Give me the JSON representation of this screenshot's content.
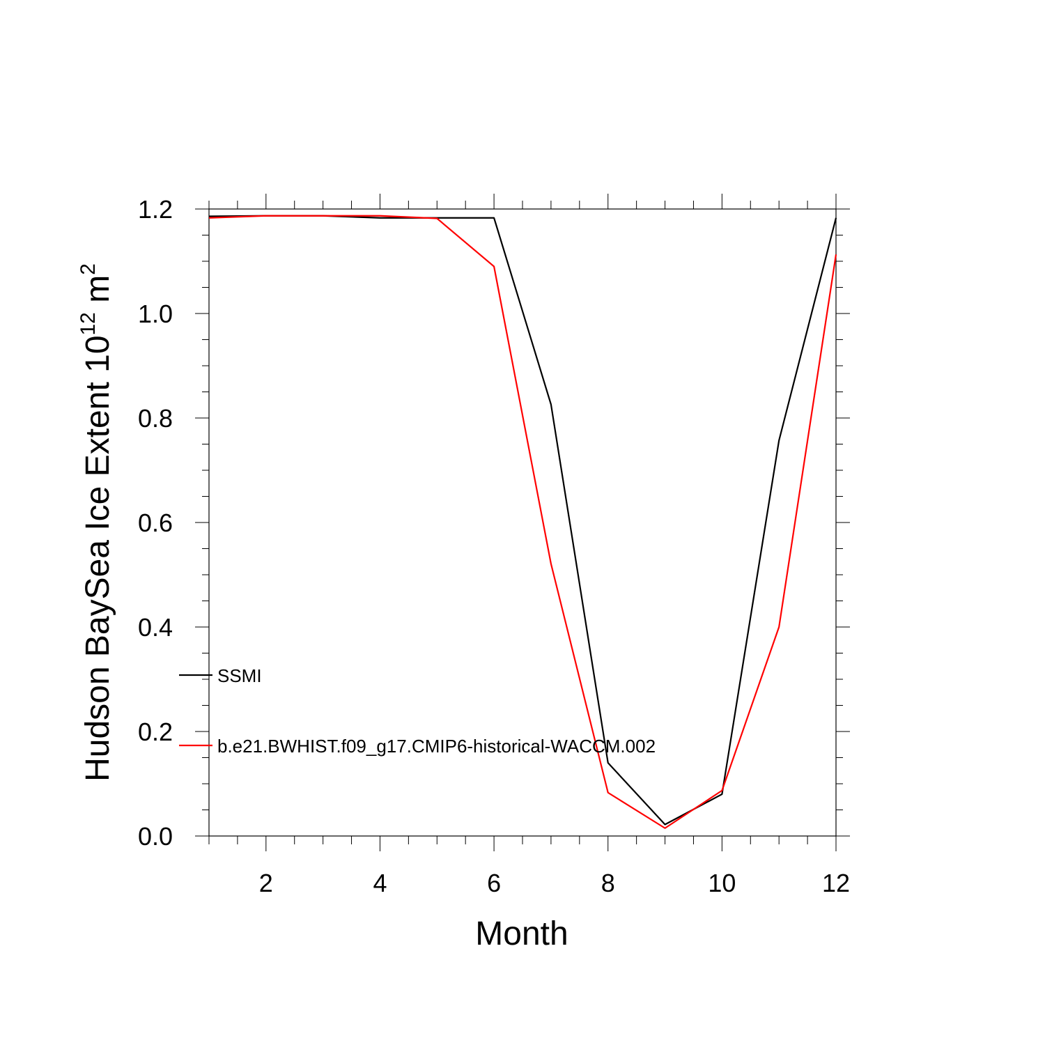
{
  "chart_data": {
    "type": "line",
    "xlabel": "Month",
    "ylabel": {
      "prefix": "Hudson BaySea Ice Extent 10",
      "superscript1": "12",
      "middle": " m",
      "superscript2": "2"
    },
    "xlim": [
      1,
      12
    ],
    "ylim": [
      0.0,
      1.2
    ],
    "x_ticks": [
      2,
      4,
      6,
      8,
      10,
      12
    ],
    "x_tick_labels": [
      "2",
      "4",
      "6",
      "8",
      "10",
      "12"
    ],
    "y_ticks": [
      0.0,
      0.2,
      0.4,
      0.6,
      0.8,
      1.0,
      1.2
    ],
    "y_tick_labels": [
      "0.0",
      "0.2",
      "0.4",
      "0.6",
      "0.8",
      "1.0",
      "1.2"
    ],
    "grid": false,
    "legend_placement": "left-middle inside",
    "x": [
      1,
      2,
      3,
      4,
      5,
      6,
      7,
      8,
      9,
      10,
      11,
      12
    ],
    "series": [
      {
        "name": "SSMI",
        "color": "#000000",
        "values": [
          1.186,
          1.187,
          1.187,
          1.183,
          1.183,
          1.183,
          0.826,
          0.14,
          0.022,
          0.08,
          0.757,
          1.183
        ]
      },
      {
        "name": "b.e21.BWHIST.f09_g17.CMIP6-historical-WACCM.002",
        "color": "#ff0000",
        "values": [
          1.183,
          1.187,
          1.187,
          1.187,
          1.182,
          1.09,
          0.521,
          0.083,
          0.015,
          0.087,
          0.4,
          1.113
        ]
      }
    ]
  }
}
